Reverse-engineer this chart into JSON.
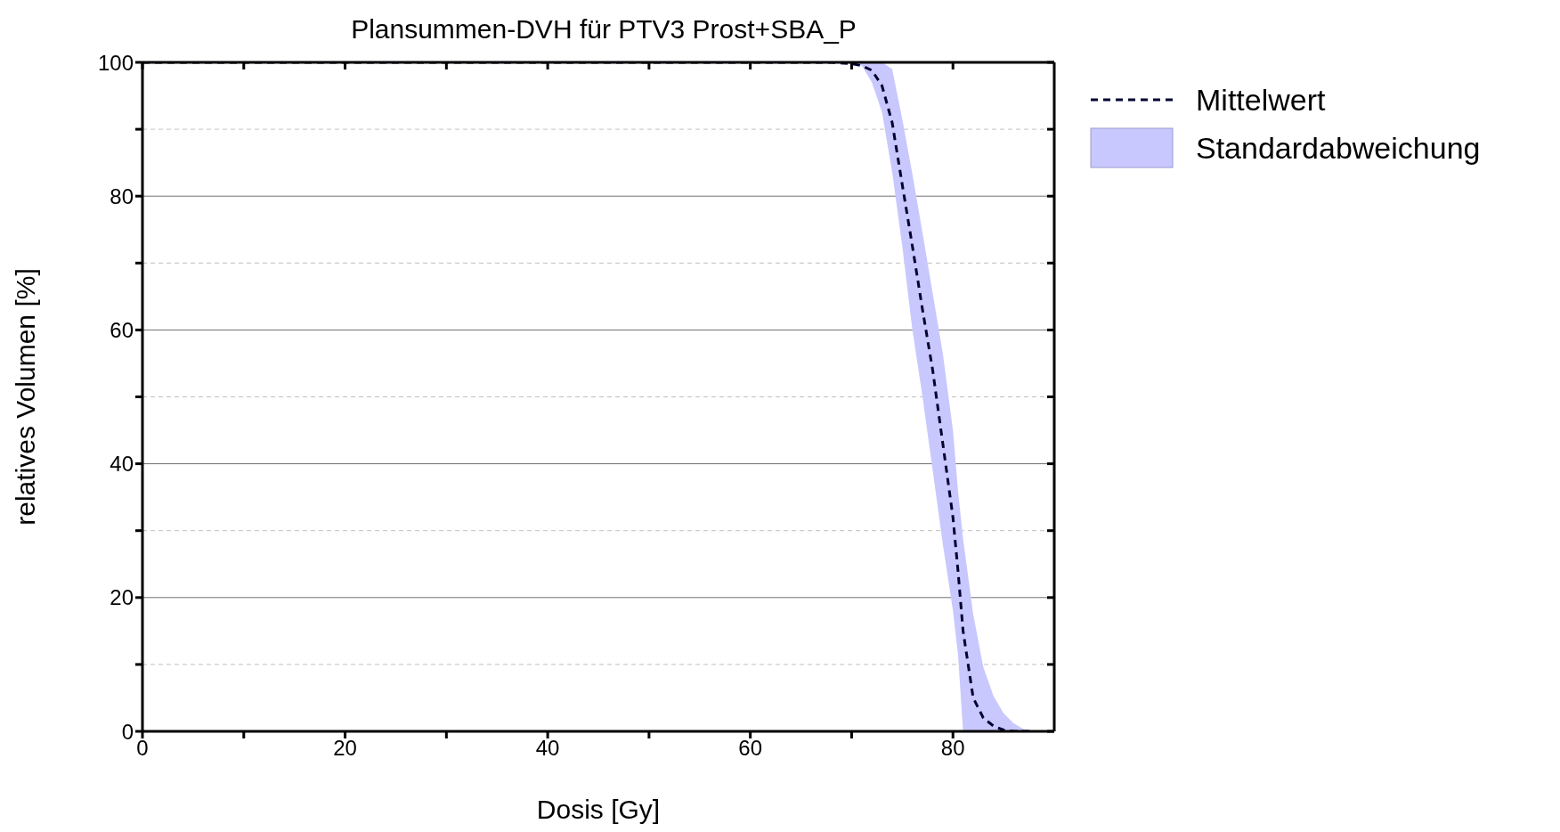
{
  "chart_data": {
    "type": "line",
    "title": "Plansummen-DVH für PTV3 Prost+SBA_P",
    "xlabel": "Dosis [Gy]",
    "ylabel": "relatives Volumen [%]",
    "x": [
      0,
      60,
      65,
      68,
      70,
      71,
      72,
      73,
      74,
      75,
      76,
      77,
      78,
      79,
      80,
      80.5,
      81,
      82,
      83,
      84,
      85,
      86,
      87,
      88
    ],
    "series": [
      {
        "name": "Mittelwert",
        "color": "#000033",
        "line_style": "dashed",
        "values": [
          100,
          100,
          100,
          100,
          99.8,
          99.5,
          98.8,
          96.5,
          91,
          81.7,
          72.5,
          63,
          54,
          43,
          32,
          24,
          15,
          5,
          2,
          0.8,
          0.2,
          0,
          0,
          0
        ],
        "lower": [
          100,
          100,
          100,
          100,
          99.8,
          99.5,
          97,
          92.5,
          83.6,
          72.5,
          60,
          50,
          39,
          28,
          18,
          11.5,
          0,
          0,
          0,
          0,
          0,
          0,
          0,
          0
        ],
        "upper": [
          100,
          100,
          100,
          100,
          100,
          100,
          100,
          100,
          99,
          91.5,
          83.3,
          74.5,
          65.5,
          56.5,
          45,
          36,
          28.8,
          17.5,
          9.6,
          5.3,
          2.7,
          1.2,
          0.3,
          0
        ]
      }
    ],
    "annotations": [
      "Standardabweichung"
    ],
    "xlim": [
      0,
      90
    ],
    "xticks": [
      0,
      {
        "value": 10,
        "label": null
      },
      20,
      {
        "value": 30,
        "label": null
      },
      40,
      {
        "value": 50,
        "label": null
      },
      60,
      {
        "value": 70,
        "label": null
      },
      80
    ],
    "ylim": [
      0,
      100
    ],
    "yticks": [
      0,
      {
        "value": 10,
        "label": null
      },
      20,
      {
        "value": 30,
        "label": null
      },
      40,
      {
        "value": 50,
        "label": null
      },
      60,
      {
        "value": 70,
        "label": null
      },
      80,
      {
        "value": 90,
        "label": null
      },
      100
    ],
    "grid": "y",
    "legend": "top right",
    "marker": "none"
  }
}
